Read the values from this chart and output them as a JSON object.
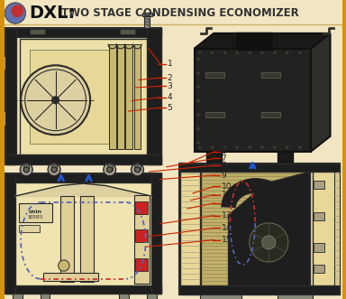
{
  "bg_color": "#f2e6c2",
  "border_color_left": "#d4930a",
  "border_color_right": "#d4930a",
  "title_dxl": "DXL:",
  "title_sub": "TWO STAGE CONDENSING ECONOMIZER",
  "line_color": "#2a2a2a",
  "diagram_fill": "#f0e4b0",
  "dark_fill": "#1e1e1e",
  "coil_fill": "#c8b870",
  "arrow_blue": "#2255cc",
  "arrow_red": "#cc2200",
  "label_red": "#cc2200",
  "label_num_color": "#222222"
}
